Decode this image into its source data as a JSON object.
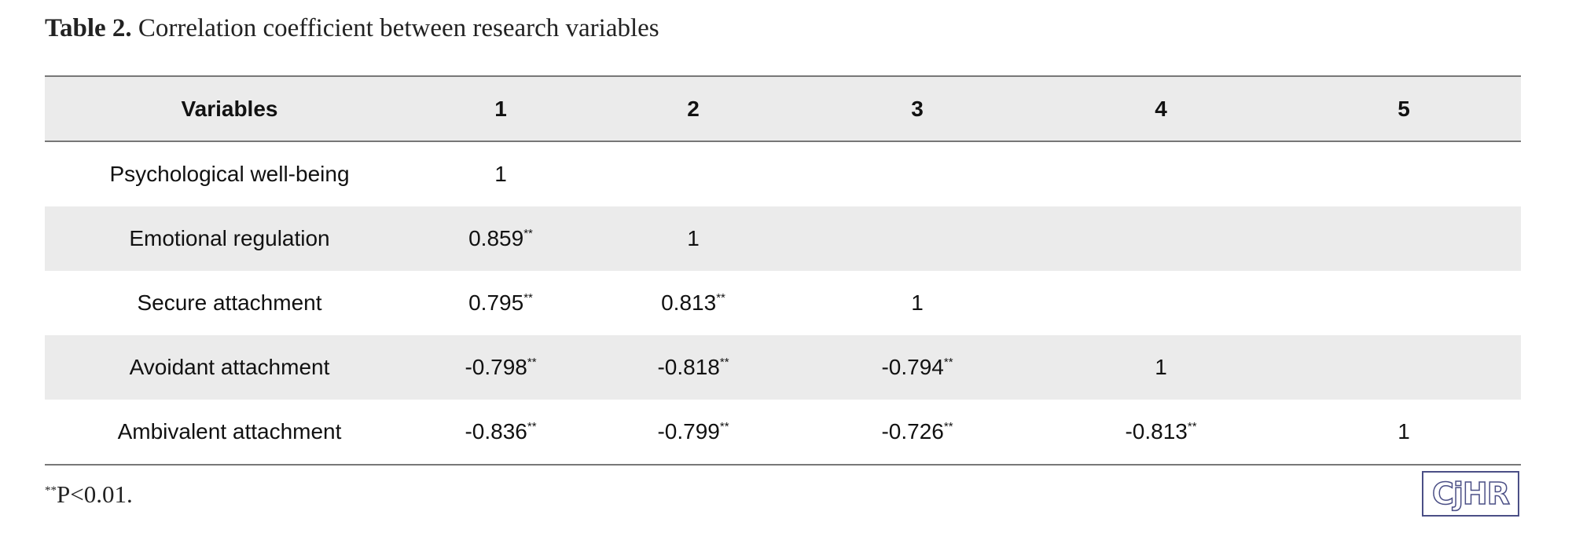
{
  "header": {
    "label": "Table 2.",
    "title": "Correlation coefficient between research variables"
  },
  "table": {
    "columns": [
      "Variables",
      "1",
      "2",
      "3",
      "4",
      "5"
    ],
    "rows": [
      {
        "label": "Psychological well-being",
        "cells": [
          {
            "text": "1"
          }
        ]
      },
      {
        "label": "Emotional regulation",
        "cells": [
          {
            "text": "0.859",
            "sup": "**"
          },
          {
            "text": "1"
          }
        ]
      },
      {
        "label": "Secure attachment",
        "cells": [
          {
            "text": "0.795",
            "sup": "**"
          },
          {
            "text": "0.813",
            "sup": "**"
          },
          {
            "text": "1"
          }
        ]
      },
      {
        "label": "Avoidant attachment",
        "cells": [
          {
            "text": "-0.798",
            "sup": "**"
          },
          {
            "text": "-0.818",
            "sup": "**"
          },
          {
            "text": "-0.794",
            "sup": "**"
          },
          {
            "text": "1"
          }
        ]
      },
      {
        "label": "Ambivalent attachment",
        "cells": [
          {
            "text": "-0.836",
            "sup": "**"
          },
          {
            "text": "-0.799",
            "sup": "**"
          },
          {
            "text": "-0.726",
            "sup": "**"
          },
          {
            "text": "-0.813",
            "sup": "**"
          },
          {
            "text": "1"
          }
        ]
      }
    ]
  },
  "footnote": {
    "sup": "**",
    "text": "P<0.01."
  },
  "logo": "CjHR"
}
